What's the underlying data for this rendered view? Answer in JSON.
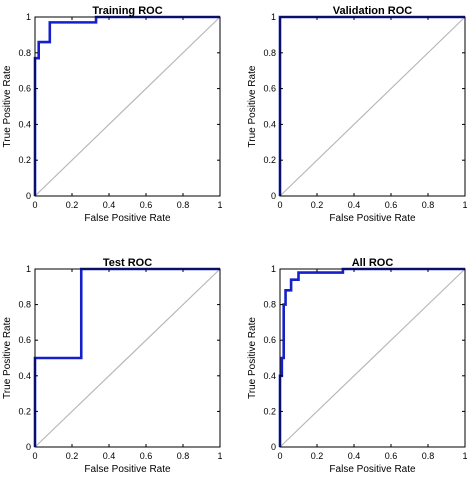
{
  "chart_data": [
    {
      "type": "line",
      "title": "Training ROC",
      "xlabel": "False Positive Rate",
      "ylabel": "True Positive Rate",
      "xlim": [
        0,
        1
      ],
      "ylim": [
        0,
        1
      ],
      "xticks": [
        "0",
        "0.2",
        "0.4",
        "0.6",
        "0.8",
        "1"
      ],
      "yticks": [
        "0",
        "0.2",
        "0.4",
        "0.6",
        "0.8",
        "1"
      ],
      "grid": false,
      "series": [
        {
          "x": [
            0,
            0,
            0.02,
            0.02,
            0.08,
            0.08,
            0.33,
            0.33,
            1
          ],
          "y": [
            0,
            0.77,
            0.77,
            0.86,
            0.86,
            0.97,
            0.97,
            1,
            1
          ]
        }
      ],
      "colors": {
        "roc": "#1520c8",
        "diagonal": "#b8b8b8"
      }
    },
    {
      "type": "line",
      "title": "Validation ROC",
      "xlabel": "False Positive Rate",
      "ylabel": "True Positive Rate",
      "xlim": [
        0,
        1
      ],
      "ylim": [
        0,
        1
      ],
      "xticks": [
        "0",
        "0.2",
        "0.4",
        "0.6",
        "0.8",
        "1"
      ],
      "yticks": [
        "0",
        "0.2",
        "0.4",
        "0.6",
        "0.8",
        "1"
      ],
      "grid": false,
      "series": [
        {
          "x": [
            0,
            0,
            1
          ],
          "y": [
            0,
            1,
            1
          ]
        }
      ],
      "colors": {
        "roc": "#1520c8",
        "diagonal": "#b8b8b8"
      }
    },
    {
      "type": "line",
      "title": "Test ROC",
      "xlabel": "False Positive Rate",
      "ylabel": "True Positive Rate",
      "xlim": [
        0,
        1
      ],
      "ylim": [
        0,
        1
      ],
      "xticks": [
        "0",
        "0.2",
        "0.4",
        "0.6",
        "0.8",
        "1"
      ],
      "yticks": [
        "0",
        "0.2",
        "0.4",
        "0.6",
        "0.8",
        "1"
      ],
      "grid": false,
      "series": [
        {
          "x": [
            0,
            0,
            0.25,
            0.25,
            1
          ],
          "y": [
            0,
            0.5,
            0.5,
            1,
            1
          ]
        }
      ],
      "colors": {
        "roc": "#1520c8",
        "diagonal": "#b8b8b8"
      }
    },
    {
      "type": "line",
      "title": "All ROC",
      "xlabel": "False Positive Rate",
      "ylabel": "True Positive Rate",
      "xlim": [
        0,
        1
      ],
      "ylim": [
        0,
        1
      ],
      "xticks": [
        "0",
        "0.2",
        "0.4",
        "0.6",
        "0.8",
        "1"
      ],
      "yticks": [
        "0",
        "0.2",
        "0.4",
        "0.6",
        "0.8",
        "1"
      ],
      "grid": false,
      "series": [
        {
          "x": [
            0,
            0,
            0.01,
            0.01,
            0.02,
            0.02,
            0.03,
            0.03,
            0.06,
            0.06,
            0.1,
            0.1,
            0.34,
            0.34,
            1
          ],
          "y": [
            0,
            0.4,
            0.4,
            0.5,
            0.5,
            0.8,
            0.8,
            0.88,
            0.88,
            0.94,
            0.94,
            0.98,
            0.98,
            1,
            1
          ]
        }
      ],
      "colors": {
        "roc": "#1520c8",
        "diagonal": "#b8b8b8"
      }
    }
  ]
}
